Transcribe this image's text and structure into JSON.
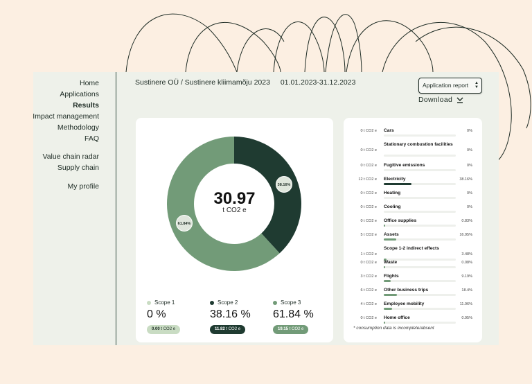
{
  "sidebar": {
    "items": [
      {
        "label": "Home"
      },
      {
        "label": "Applications"
      },
      {
        "label": "Results",
        "active": true
      },
      {
        "label": "Impact management"
      },
      {
        "label": "Methodology"
      },
      {
        "label": "FAQ"
      },
      {
        "label": "Value chain radar"
      },
      {
        "label": "Supply chain"
      },
      {
        "label": "My profile"
      }
    ]
  },
  "header": {
    "breadcrumb": "Sustinere OÜ / Sustinere kliimamõju 2023",
    "date_range": "01.01.2023-31.12.2023",
    "report_select": "Application report",
    "download_label": "Download"
  },
  "colors": {
    "scope1": "#c9dcc3",
    "scope2": "#1f3b31",
    "scope3": "#729b78",
    "bar_fill_dark": "#1f3b31",
    "bar_fill": "#729b78"
  },
  "total": {
    "value": "30.97",
    "unit": "t CO2 e"
  },
  "chart_data": {
    "type": "pie",
    "slices": [
      {
        "label": "Scope 1",
        "value": 0
      },
      {
        "label": "Scope 2",
        "value": 38.16
      },
      {
        "label": "Scope 3",
        "value": 61.84
      }
    ],
    "slice_labels": [
      "38.16%",
      "61.84%"
    ]
  },
  "scopes": [
    {
      "label": "Scope 1",
      "pct": "0 %",
      "amount": "0.00",
      "unit": "t CO2 e"
    },
    {
      "label": "Scope 2",
      "pct": "38.16 %",
      "amount": "11.82",
      "unit": "t CO2 e"
    },
    {
      "label": "Scope 3",
      "pct": "61.84 %",
      "amount": "19.15",
      "unit": "t CO2 e"
    }
  ],
  "categories": [
    {
      "value": "0 t CO2 e",
      "name": "Cars",
      "pct": "0%",
      "fraction": 0
    },
    {
      "value": "0 t CO2 e",
      "name": "Stationary combustion facilities",
      "pct": "0%",
      "fraction": 0
    },
    {
      "value": "0 t CO2 e",
      "name": "Fugitive emissions",
      "pct": "0%",
      "fraction": 0
    },
    {
      "value": "12 t CO2 e",
      "name": "Electricity",
      "pct": "38.16%",
      "fraction": 0.3816
    },
    {
      "value": "0 t CO2 e",
      "name": "Heating",
      "pct": "0%",
      "fraction": 0
    },
    {
      "value": "0 t CO2 e",
      "name": "Cooling",
      "pct": "0%",
      "fraction": 0
    },
    {
      "value": "0 t CO2 e",
      "name": "Office supplies",
      "pct": "0.83%",
      "fraction": 0.0083
    },
    {
      "value": "5 t CO2 e",
      "name": "Assets",
      "pct": "16.95%",
      "fraction": 0.1695
    },
    {
      "value": "1 t CO2 e",
      "name": "Scope 1-2 indirect effects",
      "pct": "3.48%",
      "fraction": 0.0348
    },
    {
      "value": "0 t CO2 e",
      "name": "Waste",
      "pct": "0.08%",
      "fraction": 0.0008
    },
    {
      "value": "3 t CO2 e",
      "name": "Flights",
      "pct": "9.19%",
      "fraction": 0.0919
    },
    {
      "value": "6 t CO2 e",
      "name": "Other business trips",
      "pct": "18.4%",
      "fraction": 0.184
    },
    {
      "value": "4 t CO2 e",
      "name": "Employee mobility",
      "pct": "11.96%",
      "fraction": 0.1196
    },
    {
      "value": "0 t CO2 e",
      "name": "Home office",
      "pct": "0.95%",
      "fraction": 0.0095
    }
  ],
  "footnote": "consumption data is incomplete/absent"
}
